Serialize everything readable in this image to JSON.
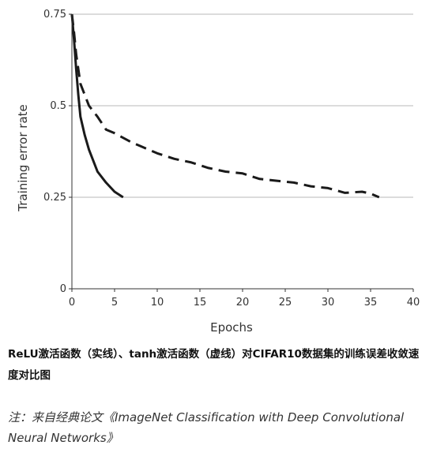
{
  "chart_data": {
    "type": "line",
    "xlabel": "Epochs",
    "ylabel": "Training error rate",
    "xlim": [
      0,
      40
    ],
    "ylim": [
      0,
      0.75
    ],
    "x_ticks": [
      0,
      5,
      10,
      15,
      20,
      25,
      30,
      35,
      40
    ],
    "y_ticks": [
      0,
      0.25,
      0.5,
      0.75
    ],
    "x_tick_labels": [
      "0",
      "5",
      "10",
      "15",
      "20",
      "25",
      "30",
      "35",
      "40"
    ],
    "y_tick_labels": [
      "0",
      "0.25",
      "0.5",
      "0.75"
    ],
    "grid": "horizontal",
    "series": [
      {
        "style": "solid",
        "color": "#1a1a1a",
        "x": [
          0,
          0.25,
          0.5,
          0.75,
          1,
          1.5,
          2,
          3,
          4,
          5,
          6
        ],
        "y": [
          0.75,
          0.68,
          0.6,
          0.53,
          0.47,
          0.42,
          0.38,
          0.32,
          0.29,
          0.265,
          0.25
        ]
      },
      {
        "style": "dashed",
        "color": "#1a1a1a",
        "x": [
          0,
          0.25,
          0.5,
          1,
          1.5,
          2,
          3,
          4,
          5,
          7,
          8,
          10,
          12,
          14,
          16,
          18,
          20,
          22,
          24,
          26,
          28,
          30,
          32,
          34,
          35,
          36
        ],
        "y": [
          0.75,
          0.7,
          0.64,
          0.56,
          0.53,
          0.5,
          0.47,
          0.435,
          0.425,
          0.4,
          0.39,
          0.37,
          0.355,
          0.345,
          0.33,
          0.32,
          0.315,
          0.3,
          0.295,
          0.29,
          0.28,
          0.275,
          0.262,
          0.265,
          0.26,
          0.25
        ]
      }
    ]
  },
  "caption": "ReLU激活函数（实线）、tanh激活函数（虚线）对CIFAR10数据集的训练误差收敛速度对比图",
  "note": "注：来自经典论文《ImageNet Classification with Deep Convolutional Neural Networks》"
}
